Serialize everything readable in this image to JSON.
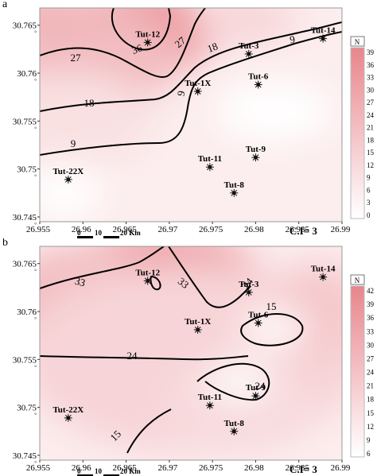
{
  "panels": [
    {
      "id": "a",
      "label": "a",
      "wells": [
        {
          "name": "Tut-12",
          "x": 26.9675,
          "y": 30.7632
        },
        {
          "name": "Tut-14",
          "x": 26.9878,
          "y": 30.7636
        },
        {
          "name": "Tut-3",
          "x": 26.9792,
          "y": 30.762
        },
        {
          "name": "Tut-6",
          "x": 26.9803,
          "y": 30.7588
        },
        {
          "name": "Tut-1X",
          "x": 26.9733,
          "y": 30.7581
        },
        {
          "name": "Tut-9",
          "x": 26.98,
          "y": 30.7512
        },
        {
          "name": "Tut-11",
          "x": 26.9747,
          "y": 30.7502
        },
        {
          "name": "Tut-8",
          "x": 26.9775,
          "y": 30.7475
        },
        {
          "name": "Tut-22X",
          "x": 26.9583,
          "y": 30.7489
        }
      ],
      "contour_labels": [
        "36",
        "27",
        "27",
        "18",
        "18",
        "9",
        "9",
        "9"
      ],
      "legend": {
        "ticks": [
          "39",
          "36",
          "33",
          "30",
          "27",
          "24",
          "21",
          "18",
          "15",
          "12",
          "9",
          "6",
          "3",
          "0"
        ],
        "min": 0,
        "max": 40
      },
      "ci_text": "C.I= 3"
    },
    {
      "id": "b",
      "label": "b",
      "wells": [
        {
          "name": "Tut-12",
          "x": 26.9675,
          "y": 30.7632
        },
        {
          "name": "Tut-14",
          "x": 26.9878,
          "y": 30.7636
        },
        {
          "name": "Tut-3",
          "x": 26.9792,
          "y": 30.762
        },
        {
          "name": "Tut-6",
          "x": 26.9803,
          "y": 30.7588
        },
        {
          "name": "Tut-1X",
          "x": 26.9733,
          "y": 30.7581
        },
        {
          "name": "Tut-9",
          "x": 26.98,
          "y": 30.7512
        },
        {
          "name": "Tut-11",
          "x": 26.9747,
          "y": 30.7502
        },
        {
          "name": "Tut-8",
          "x": 26.9775,
          "y": 30.7475
        },
        {
          "name": "Tut-22X",
          "x": 26.9583,
          "y": 30.7489
        }
      ],
      "contour_labels": [
        "33",
        "33",
        "24",
        "24",
        "15",
        "24",
        "15"
      ],
      "legend": {
        "ticks": [
          "42",
          "39",
          "36",
          "33",
          "30",
          "27",
          "24",
          "21",
          "18",
          "15",
          "12",
          "9",
          "6"
        ],
        "min": 6,
        "max": 42
      },
      "ci_text": "C.I= 3"
    }
  ],
  "x_ticks": [
    "26.955",
    "26.96",
    "26.965",
    "26.97",
    "26.975",
    "26.98",
    "26.985",
    "26.99"
  ],
  "x_tick_values": [
    26.955,
    26.96,
    26.965,
    26.97,
    26.975,
    26.98,
    26.985,
    26.99
  ],
  "y_ticks": [
    "30.765",
    "30.76",
    "30.755",
    "30.75",
    "30.745"
  ],
  "y_tick_values": [
    30.765,
    30.76,
    30.755,
    30.75,
    30.745
  ],
  "scalebar": {
    "labels": [
      "0",
      "10",
      "20 Km"
    ]
  },
  "north_arrow": {
    "label": "N"
  },
  "colors": {
    "high": "#e8858c",
    "low": "#ffffff",
    "contour": "#000000"
  }
}
